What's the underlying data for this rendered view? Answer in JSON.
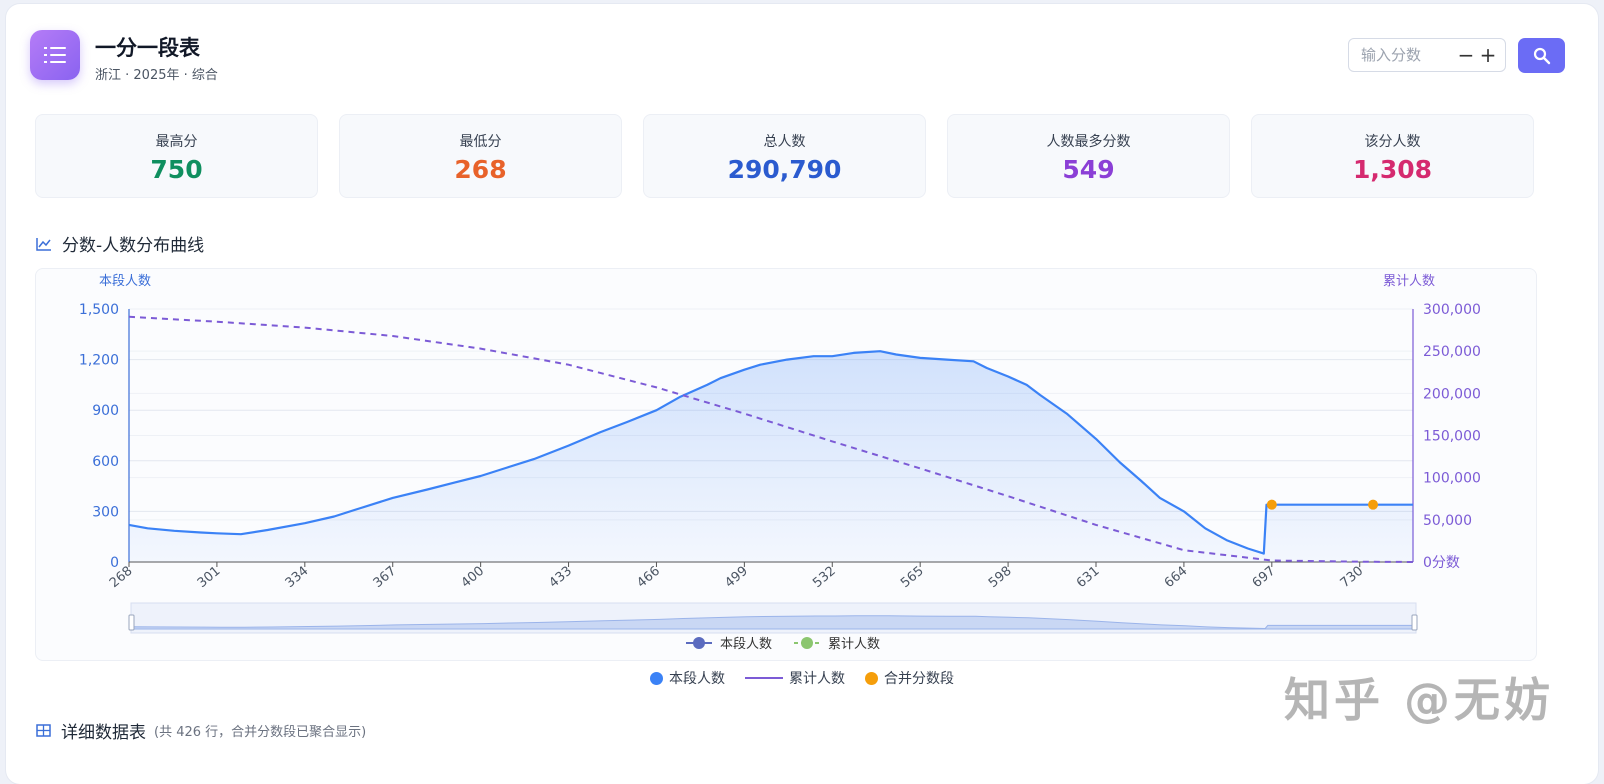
{
  "header": {
    "title": "一分一段表",
    "subtitle": "浙江 · 2025年 · 综合",
    "score_placeholder": "输入分数",
    "minus": "−",
    "plus": "+"
  },
  "stats": [
    {
      "label": "最高分",
      "value": "750",
      "color": "#0f8f5f"
    },
    {
      "label": "最低分",
      "value": "268",
      "color": "#e8622a"
    },
    {
      "label": "总人数",
      "value": "290,790",
      "color": "#2b5bcf"
    },
    {
      "label": "人数最多分数",
      "value": "549",
      "color": "#8b3fd6"
    },
    {
      "label": "该分人数",
      "value": "1,308",
      "color": "#d52a6f"
    }
  ],
  "chart_section": {
    "title": "分数-人数分布曲线"
  },
  "table_section": {
    "title": "详细数据表",
    "note": "(共 426 行，合并分数段已聚合显示)"
  },
  "legend_bottom": [
    {
      "label": "本段人数",
      "color": "#3b82f6",
      "kind": "dot"
    },
    {
      "label": "累计人数",
      "color": "#7c5bd6",
      "kind": "line"
    },
    {
      "label": "合并分数段",
      "color": "#f59e0b",
      "kind": "dot"
    }
  ],
  "watermark": "知乎 @无妨",
  "chart_data": {
    "type": "line",
    "y_left_label": "本段人数",
    "y_right_label": "累计人数",
    "y_left_ticks": [
      "0",
      "300",
      "600",
      "900",
      "1,200",
      "1,500"
    ],
    "y_right_ticks": [
      "0分数",
      "50,000",
      "100,000",
      "150,000",
      "200,000",
      "250,000",
      "300,000"
    ],
    "x_ticks": [
      "268",
      "301",
      "334",
      "367",
      "400",
      "433",
      "466",
      "499",
      "532",
      "565",
      "598",
      "631",
      "664",
      "697",
      "730"
    ],
    "xlim": [
      268,
      750
    ],
    "ylim_left": [
      0,
      1500
    ],
    "ylim_right": [
      0,
      300000
    ],
    "grid": true,
    "series": [
      {
        "name": "本段人数",
        "axis": "left",
        "color": "#3b82f6",
        "area": true,
        "points": [
          [
            268,
            220
          ],
          [
            275,
            200
          ],
          [
            285,
            185
          ],
          [
            295,
            175
          ],
          [
            301,
            170
          ],
          [
            310,
            165
          ],
          [
            320,
            190
          ],
          [
            334,
            230
          ],
          [
            345,
            270
          ],
          [
            355,
            320
          ],
          [
            367,
            380
          ],
          [
            380,
            430
          ],
          [
            390,
            470
          ],
          [
            400,
            510
          ],
          [
            410,
            560
          ],
          [
            420,
            610
          ],
          [
            433,
            690
          ],
          [
            445,
            770
          ],
          [
            455,
            830
          ],
          [
            466,
            900
          ],
          [
            475,
            980
          ],
          [
            485,
            1050
          ],
          [
            490,
            1090
          ],
          [
            499,
            1140
          ],
          [
            505,
            1170
          ],
          [
            515,
            1200
          ],
          [
            525,
            1220
          ],
          [
            532,
            1220
          ],
          [
            540,
            1240
          ],
          [
            550,
            1250
          ],
          [
            556,
            1230
          ],
          [
            565,
            1210
          ],
          [
            575,
            1200
          ],
          [
            585,
            1190
          ],
          [
            590,
            1150
          ],
          [
            598,
            1100
          ],
          [
            605,
            1050
          ],
          [
            610,
            990
          ],
          [
            620,
            880
          ],
          [
            631,
            730
          ],
          [
            640,
            590
          ],
          [
            648,
            480
          ],
          [
            655,
            380
          ],
          [
            664,
            300
          ],
          [
            672,
            200
          ],
          [
            680,
            130
          ],
          [
            688,
            80
          ],
          [
            694,
            50
          ],
          [
            695,
            340
          ],
          [
            720,
            340
          ],
          [
            750,
            340
          ]
        ]
      },
      {
        "name": "累计人数",
        "axis": "right",
        "color": "#7c5bd6",
        "dashed": true,
        "points": [
          [
            268,
            290790
          ],
          [
            301,
            285000
          ],
          [
            334,
            278000
          ],
          [
            367,
            268000
          ],
          [
            400,
            253000
          ],
          [
            433,
            234000
          ],
          [
            466,
            207000
          ],
          [
            499,
            176000
          ],
          [
            532,
            143000
          ],
          [
            565,
            111000
          ],
          [
            598,
            78000
          ],
          [
            631,
            44000
          ],
          [
            664,
            14000
          ],
          [
            697,
            1800
          ],
          [
            730,
            400
          ],
          [
            750,
            0
          ]
        ]
      }
    ],
    "merged_segments": [
      [
        697,
        340
      ],
      [
        735,
        340
      ]
    ],
    "legend_in_chart": [
      "本段人数",
      "累计人数"
    ]
  }
}
